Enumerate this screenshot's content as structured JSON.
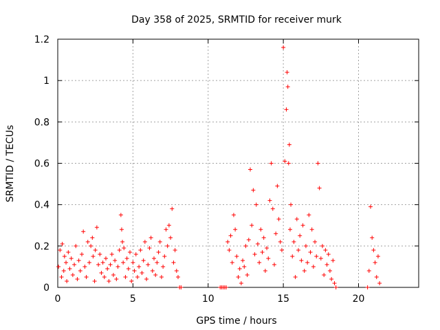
{
  "chart_data": {
    "type": "scatter",
    "title": "Day 358 of 2025, SRMTID for receiver murk",
    "xlabel": "GPS time / hours",
    "ylabel": "SRMTID / TECUs",
    "xlim": [
      0,
      24
    ],
    "ylim": [
      0,
      1.2
    ],
    "x_ticks": [
      "0",
      "5",
      "10",
      "15",
      "20"
    ],
    "y_ticks": [
      "0",
      "0.2",
      "0.4",
      "0.6",
      "0.8",
      "1",
      "1.2"
    ],
    "grid": true,
    "marker": "plus",
    "color": "#ff0000",
    "series": [
      {
        "x": [
          0.05,
          0.15,
          0.25,
          0.3,
          0.4,
          0.45,
          0.55,
          0.6,
          0.7,
          0.8,
          0.9,
          1.0,
          1.1,
          1.2,
          1.3,
          1.4,
          1.5,
          1.6,
          1.7,
          1.8,
          1.9,
          2.0,
          2.1,
          2.2,
          2.3,
          2.35,
          2.45,
          2.5,
          2.6,
          2.7,
          2.8,
          2.9,
          3.0,
          3.1,
          3.2,
          3.3,
          3.4,
          3.5,
          3.6,
          3.7,
          3.8,
          3.9,
          4.0,
          4.1,
          4.2,
          4.25,
          4.3,
          4.35,
          4.4,
          4.5,
          4.6,
          4.7,
          4.8,
          4.9,
          5.0,
          5.1,
          5.2,
          5.3,
          5.4,
          5.5,
          5.6,
          5.7,
          5.8,
          5.9,
          6.0,
          6.1,
          6.2,
          6.3,
          6.4,
          6.5,
          6.6,
          6.7,
          6.8,
          6.9,
          7.0,
          7.1,
          7.2,
          7.3,
          7.4,
          7.5,
          7.6,
          7.7,
          7.8,
          7.9,
          8.0,
          8.1,
          8.2,
          10.8,
          10.9,
          11.0,
          11.1,
          11.2,
          11.3,
          11.4,
          11.5,
          11.6,
          11.7,
          11.8,
          11.9,
          12.0,
          12.1,
          12.2,
          12.3,
          12.4,
          12.5,
          12.6,
          12.7,
          12.8,
          12.9,
          13.0,
          13.1,
          13.2,
          13.3,
          13.4,
          13.5,
          13.6,
          13.7,
          13.8,
          13.9,
          14.0,
          14.1,
          14.2,
          14.3,
          14.4,
          14.5,
          14.6,
          14.7,
          14.8,
          14.9,
          15.0,
          15.1,
          15.2,
          15.25,
          15.3,
          15.35,
          15.4,
          15.45,
          15.5,
          15.6,
          15.7,
          15.8,
          15.9,
          16.0,
          16.1,
          16.2,
          16.3,
          16.4,
          16.5,
          16.6,
          16.7,
          16.8,
          16.9,
          17.0,
          17.1,
          17.2,
          17.3,
          17.4,
          17.5,
          17.6,
          17.7,
          17.8,
          17.9,
          18.0,
          18.1,
          18.2,
          18.3,
          18.4,
          18.5,
          20.6,
          20.7,
          20.8,
          20.9,
          21.0,
          21.1,
          21.2,
          21.3,
          21.4
        ],
        "y": [
          0.1,
          0.18,
          0.05,
          0.21,
          0.08,
          0.15,
          0.12,
          0.03,
          0.17,
          0.09,
          0.14,
          0.06,
          0.11,
          0.2,
          0.04,
          0.13,
          0.08,
          0.16,
          0.27,
          0.1,
          0.05,
          0.22,
          0.12,
          0.2,
          0.24,
          0.15,
          0.03,
          0.18,
          0.29,
          0.11,
          0.16,
          0.07,
          0.12,
          0.05,
          0.14,
          0.09,
          0.03,
          0.11,
          0.16,
          0.06,
          0.13,
          0.04,
          0.1,
          0.18,
          0.35,
          0.28,
          0.22,
          0.12,
          0.19,
          0.05,
          0.14,
          0.09,
          0.17,
          0.03,
          0.12,
          0.08,
          0.16,
          0.05,
          0.1,
          0.18,
          0.07,
          0.13,
          0.22,
          0.04,
          0.11,
          0.19,
          0.24,
          0.08,
          0.14,
          0.06,
          0.12,
          0.17,
          0.22,
          0.05,
          0.1,
          0.15,
          0.28,
          0.2,
          0.3,
          0.24,
          0.38,
          0.12,
          0.18,
          0.08,
          0.05,
          0.0,
          0.0,
          0.0,
          0.0,
          0.0,
          0.0,
          0.0,
          0.22,
          0.18,
          0.25,
          0.12,
          0.35,
          0.28,
          0.15,
          0.05,
          0.09,
          0.02,
          0.13,
          0.1,
          0.2,
          0.06,
          0.23,
          0.57,
          0.3,
          0.47,
          0.16,
          0.4,
          0.21,
          0.12,
          0.28,
          0.17,
          0.24,
          0.08,
          0.19,
          0.14,
          0.42,
          0.6,
          0.38,
          0.11,
          0.26,
          0.49,
          0.33,
          0.22,
          0.18,
          1.16,
          0.61,
          0.86,
          1.04,
          0.97,
          0.6,
          0.69,
          0.28,
          0.4,
          0.15,
          0.22,
          0.05,
          0.33,
          0.18,
          0.25,
          0.13,
          0.3,
          0.08,
          0.2,
          0.12,
          0.35,
          0.17,
          0.28,
          0.1,
          0.22,
          0.15,
          0.6,
          0.48,
          0.14,
          0.2,
          0.06,
          0.18,
          0.11,
          0.16,
          0.08,
          0.04,
          0.13,
          0.02,
          0.0,
          0.0,
          0.08,
          0.39,
          0.24,
          0.18,
          0.12,
          0.05,
          0.15,
          0.02
        ]
      }
    ]
  }
}
